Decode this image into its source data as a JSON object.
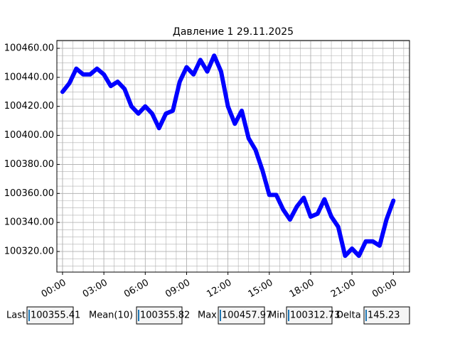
{
  "chart_data": {
    "type": "line",
    "title": "Давление 1 29.11.2025",
    "x": [
      0,
      0.5,
      1,
      1.5,
      2,
      2.5,
      3,
      3.5,
      4,
      4.5,
      5,
      5.5,
      6,
      6.5,
      7,
      7.5,
      8,
      8.5,
      9,
      9.5,
      10,
      10.5,
      11,
      11.5,
      12,
      12.5,
      13,
      13.5,
      14,
      14.5,
      15,
      15.5,
      16,
      16.5,
      17,
      17.5,
      18,
      18.5,
      19,
      19.5,
      20,
      20.5,
      21,
      21.5,
      22,
      22.5,
      23,
      23.5,
      24
    ],
    "series": [
      {
        "color": "#0000ff",
        "values": [
          100430,
          100436,
          100446,
          100442,
          100442,
          100446,
          100442,
          100434,
          100437,
          100432,
          100420,
          100415,
          100420,
          100415,
          100405,
          100415,
          100417,
          100437,
          100447,
          100442,
          100452,
          100444,
          100455,
          100444,
          100420,
          100408,
          100417,
          100398,
          100390,
          100376,
          100359,
          100359,
          100349,
          100342,
          100351,
          100357,
          100344,
          100346,
          100356,
          100344,
          100337,
          100317,
          100322,
          100317,
          100327,
          100327,
          100324,
          100342,
          100355
        ]
      }
    ],
    "xlim": [
      -0.41,
      25.17
    ],
    "ylim": [
      100305.8,
      100465.4
    ],
    "xticks": [
      {
        "value": 0,
        "label": "00:00"
      },
      {
        "value": 3,
        "label": "03:00"
      },
      {
        "value": 6,
        "label": "06:00"
      },
      {
        "value": 9,
        "label": "09:00"
      },
      {
        "value": 12,
        "label": "12:00"
      },
      {
        "value": 15,
        "label": "15:00"
      },
      {
        "value": 18,
        "label": "18:00"
      },
      {
        "value": 21,
        "label": "21:00"
      },
      {
        "value": 24,
        "label": "00:00"
      }
    ],
    "yticks": [
      {
        "value": 100320,
        "label": "100320.00"
      },
      {
        "value": 100340,
        "label": "100340.00"
      },
      {
        "value": 100360,
        "label": "100360.00"
      },
      {
        "value": 100380,
        "label": "100380.00"
      },
      {
        "value": 100400,
        "label": "100400.00"
      },
      {
        "value": 100420,
        "label": "100420.00"
      },
      {
        "value": 100440,
        "label": "100440.00"
      },
      {
        "value": 100460,
        "label": "100460.00"
      }
    ],
    "grid": true
  },
  "widgets": [
    {
      "label": "Last",
      "value": "100355.41"
    },
    {
      "label": "Mean(10)",
      "value": "100355.82"
    },
    {
      "label": "Max",
      "value": "100457.97"
    },
    {
      "label": "Min",
      "value": "100312.73"
    },
    {
      "label": "Delta",
      "value": "145.23"
    }
  ]
}
